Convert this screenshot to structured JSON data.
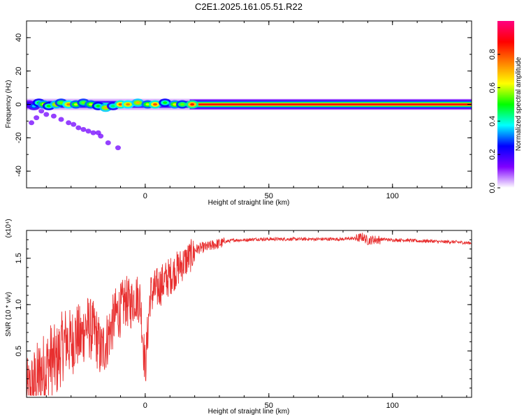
{
  "title": "C2E1.2025.161.05.51.R22",
  "colors": {
    "snr_line": "#e83030",
    "frame": "#000000"
  },
  "chart_data": [
    {
      "type": "heatmap",
      "xlabel": "Height of straight line (km)",
      "ylabel": "Frequency (Hz)",
      "xlim": [
        -48,
        132
      ],
      "ylim": [
        -50,
        50
      ],
      "xticks": [
        0,
        50,
        100
      ],
      "yticks": [
        -40,
        -20,
        0,
        20,
        40
      ],
      "colorbar": {
        "label": "Normalized spectral amplitude",
        "range": [
          0,
          1
        ],
        "ticks": [
          0.0,
          0.2,
          0.4,
          0.6,
          0.8
        ],
        "tick_labels": [
          "0.0",
          "0.2",
          "0.4",
          "0.6",
          "0.8"
        ],
        "colormap": [
          "#ffffff",
          "#8000ff",
          "#0000ff",
          "#00ffff",
          "#00ff00",
          "#ffff00",
          "#ff8000",
          "#ff0000",
          "#ff0080"
        ]
      },
      "main_band": {
        "freq": 0,
        "x_from": -48,
        "x_to": 132,
        "steady_from": 18
      },
      "blobs": [
        {
          "x": -47,
          "y": 0,
          "v": 0.25
        },
        {
          "x": -45,
          "y": -1,
          "v": 0.35
        },
        {
          "x": -43,
          "y": 1,
          "v": 0.5
        },
        {
          "x": -41,
          "y": 0,
          "v": 0.65
        },
        {
          "x": -39,
          "y": -1,
          "v": 0.5
        },
        {
          "x": -36,
          "y": 0,
          "v": 0.7
        },
        {
          "x": -34,
          "y": 1,
          "v": 0.55
        },
        {
          "x": -31,
          "y": 0,
          "v": 0.75
        },
        {
          "x": -28,
          "y": 0,
          "v": 0.6
        },
        {
          "x": -25,
          "y": 1,
          "v": 0.55
        },
        {
          "x": -22,
          "y": 0,
          "v": 0.6
        },
        {
          "x": -19,
          "y": -1,
          "v": 0.5
        },
        {
          "x": -16,
          "y": -2,
          "v": 0.7
        },
        {
          "x": -13,
          "y": -1,
          "v": 0.45
        },
        {
          "x": -10,
          "y": 0,
          "v": 0.8
        },
        {
          "x": -7,
          "y": 0,
          "v": 0.75
        },
        {
          "x": -3,
          "y": 1,
          "v": 0.7
        },
        {
          "x": 1,
          "y": 0,
          "v": 0.6
        },
        {
          "x": 4,
          "y": 0,
          "v": 0.8
        },
        {
          "x": 8,
          "y": 1,
          "v": 0.5
        },
        {
          "x": 12,
          "y": 0,
          "v": 0.65
        },
        {
          "x": 15,
          "y": 0,
          "v": 0.55
        },
        {
          "x": 19,
          "y": 0,
          "v": 0.85
        }
      ],
      "drift_trail": [
        {
          "x": -44,
          "y": -8
        },
        {
          "x": -40,
          "y": -6
        },
        {
          "x": -37,
          "y": -7
        },
        {
          "x": -34,
          "y": -9
        },
        {
          "x": -31,
          "y": -11
        },
        {
          "x": -29,
          "y": -12
        },
        {
          "x": -27,
          "y": -14
        },
        {
          "x": -25,
          "y": -15
        },
        {
          "x": -23,
          "y": -16
        },
        {
          "x": -21,
          "y": -17
        },
        {
          "x": -19,
          "y": -17
        },
        {
          "x": -18,
          "y": -19
        },
        {
          "x": -15,
          "y": -23
        },
        {
          "x": -11,
          "y": -26
        },
        {
          "x": -46,
          "y": -11
        },
        {
          "x": -42,
          "y": -4
        }
      ]
    },
    {
      "type": "line",
      "xlabel": "Height of straight line (km)",
      "ylabel": "SNR (10 * v/v)",
      "exponent_label": "(x10⁴)",
      "xlim": [
        -48,
        132
      ],
      "ylim": [
        0.0,
        1.8
      ],
      "xticks": [
        0,
        50,
        100
      ],
      "yticks": [
        0.5,
        1.0,
        1.5
      ],
      "ytick_labels": [
        "0.5",
        "1.0",
        "1.5"
      ],
      "series": [
        {
          "x": [
            -48,
            -46,
            -44,
            -42,
            -40,
            -38,
            -36,
            -34,
            -32,
            -30,
            -28,
            -26,
            -24,
            -22,
            -20,
            -18,
            -16,
            -14,
            -12,
            -10,
            -8,
            -6,
            -4,
            -2,
            0,
            2,
            4,
            6,
            8,
            10,
            12,
            14,
            16,
            18,
            20,
            22,
            24,
            26,
            28,
            30,
            32,
            34,
            36,
            38,
            40,
            45,
            50,
            55,
            60,
            65,
            70,
            75,
            80,
            85,
            88,
            90,
            92,
            95,
            100,
            105,
            110,
            115,
            120,
            125,
            130,
            132
          ],
          "values": [
            0.05,
            0.15,
            0.25,
            0.35,
            0.4,
            0.5,
            0.45,
            0.6,
            0.7,
            0.65,
            0.75,
            0.7,
            0.85,
            0.8,
            0.75,
            0.55,
            0.65,
            0.8,
            0.95,
            1.0,
            1.1,
            1.05,
            1.15,
            1.1,
            0.35,
            1.15,
            1.2,
            1.25,
            1.3,
            1.35,
            1.4,
            1.45,
            1.5,
            1.55,
            1.6,
            1.62,
            1.63,
            1.64,
            1.66,
            1.67,
            1.68,
            1.69,
            1.7,
            1.7,
            1.7,
            1.71,
            1.71,
            1.71,
            1.71,
            1.71,
            1.71,
            1.71,
            1.71,
            1.72,
            1.74,
            1.7,
            1.71,
            1.71,
            1.7,
            1.7,
            1.69,
            1.69,
            1.68,
            1.68,
            1.67,
            1.67
          ]
        }
      ]
    }
  ]
}
